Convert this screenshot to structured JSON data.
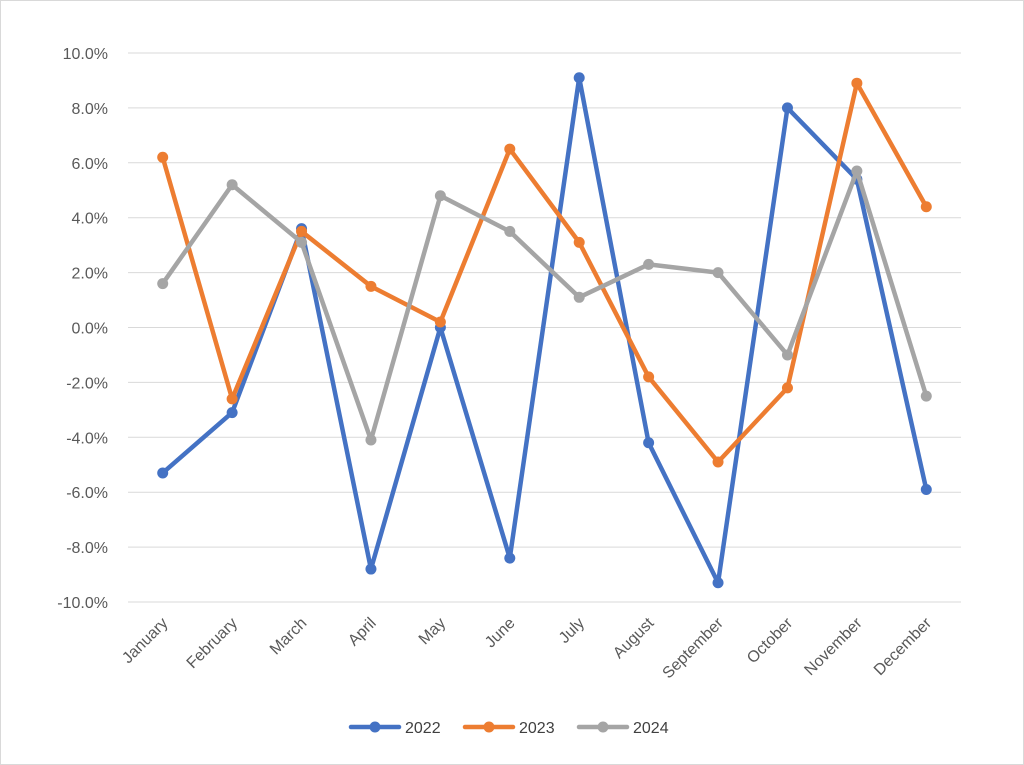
{
  "chart_data": {
    "type": "line",
    "title": "",
    "xlabel": "",
    "ylabel": "",
    "categories": [
      "January",
      "February",
      "March",
      "April",
      "May",
      "June",
      "July",
      "August",
      "September",
      "October",
      "November",
      "December"
    ],
    "ylim": [
      -0.1,
      0.1
    ],
    "ytick_step": 0.02,
    "y_format": "percent_1dp",
    "grid": true,
    "legend_position": "bottom",
    "series": [
      {
        "name": "2022",
        "color": "#4472C4",
        "values": [
          -0.053,
          -0.031,
          0.036,
          -0.088,
          0.0,
          -0.084,
          0.091,
          -0.042,
          -0.093,
          0.08,
          0.054,
          -0.059
        ]
      },
      {
        "name": "2023",
        "color": "#ED7D31",
        "values": [
          0.062,
          -0.026,
          0.035,
          0.015,
          0.002,
          0.065,
          0.031,
          -0.018,
          -0.049,
          -0.022,
          0.089,
          0.044
        ]
      },
      {
        "name": "2024",
        "color": "#A5A5A5",
        "values": [
          0.016,
          0.052,
          0.031,
          -0.041,
          0.048,
          0.035,
          0.011,
          0.023,
          0.02,
          -0.01,
          0.057,
          -0.025
        ]
      }
    ]
  }
}
